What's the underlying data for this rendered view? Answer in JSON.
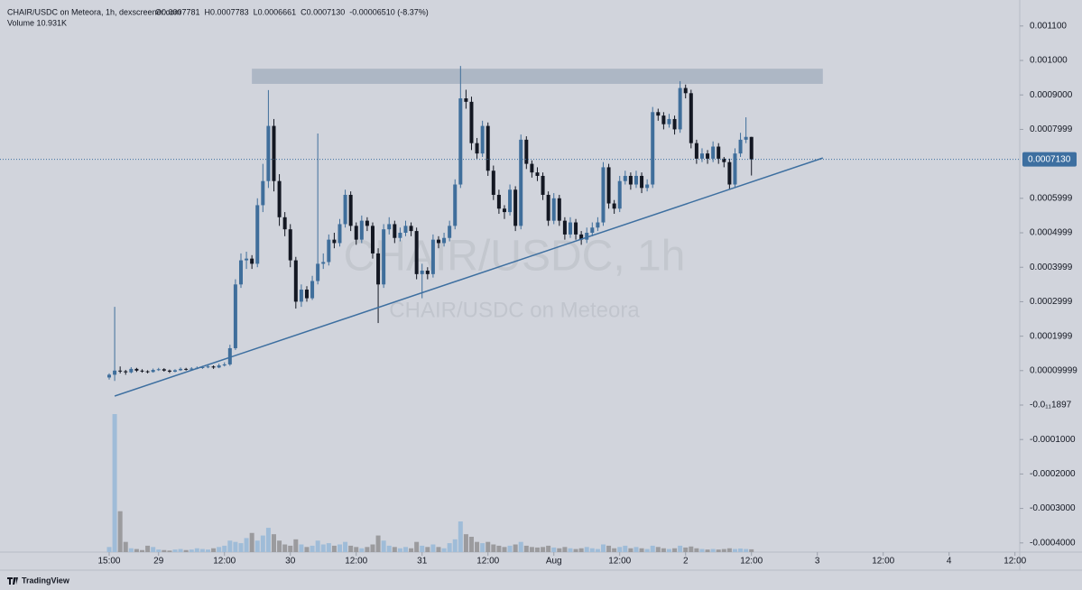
{
  "chart_data": {
    "type": "candlestick",
    "header": {
      "title": "CHAIR/USDC on Meteora, 1h, dexscreener.com",
      "ohlc": [
        "O0.0007781",
        "H0.0007783",
        "L0.0006661",
        "C0.0007130",
        "-0.00006510 (-8.37%)"
      ],
      "volume": "Volume  10.931K"
    },
    "watermark": {
      "title": "CHAIR/USDC, 1h",
      "subtitle": "CHAIR/USDC on Meteora"
    },
    "footer": "TradingView",
    "x": [
      0,
      1,
      2,
      3,
      4,
      5,
      6,
      7,
      8,
      9,
      10,
      11,
      12,
      13,
      14,
      15,
      16,
      17,
      18,
      19,
      20,
      21,
      22,
      23,
      24,
      25,
      26,
      27,
      28,
      29,
      30,
      31,
      32,
      33,
      34,
      35,
      36,
      37,
      38,
      39,
      40,
      41,
      42,
      43,
      44,
      45,
      46,
      47,
      48,
      49,
      50,
      51,
      52,
      53,
      54,
      55,
      56,
      57,
      58,
      59,
      60,
      61,
      62,
      63,
      64,
      65,
      66,
      67,
      68,
      69,
      70,
      71,
      72,
      73,
      74,
      75,
      76,
      77,
      78,
      79,
      80,
      81,
      82,
      83,
      84,
      85,
      86,
      87,
      88,
      89,
      90,
      91,
      92,
      93,
      94,
      95,
      96,
      97,
      98,
      99,
      100,
      101,
      102,
      103,
      104,
      105,
      106,
      107,
      108,
      109,
      110,
      111,
      112,
      113,
      114,
      115,
      116,
      117
    ],
    "open": [
      8e-05,
      8.8e-05,
      0.0001,
      9.8e-05,
      9.5e-05,
      0.000105,
      0.0001,
      9.8e-05,
      9.6e-05,
      0.000102,
      0.000104,
      0.0001,
      9.7e-05,
      0.000101,
      0.000105,
      0.000103,
      0.000106,
      0.000108,
      0.00011,
      0.000112,
      0.000109,
      0.000115,
      0.000118,
      0.000165,
      0.00035,
      0.00042,
      0.000425,
      0.00041,
      0.00058,
      0.00065,
      0.00081,
      0.00065,
      0.000545,
      0.00051,
      0.00042,
      0.0003,
      0.000335,
      0.00031,
      0.00036,
      0.00041,
      0.000415,
      0.00048,
      0.00047,
      0.000525,
      0.00061,
      0.00052,
      0.00048,
      0.000535,
      0.00052,
      0.00044,
      0.00035,
      0.00051,
      0.000525,
      0.000485,
      0.0005,
      0.00052,
      0.000505,
      0.00038,
      0.00039,
      0.00038,
      0.00048,
      0.00047,
      0.000485,
      0.00052,
      0.00064,
      0.00089,
      0.00088,
      0.00076,
      0.00073,
      0.00081,
      0.00068,
      0.00061,
      0.00057,
      0.00056,
      0.000625,
      0.00052,
      0.00077,
      0.0007,
      0.000675,
      0.000665,
      0.00061,
      0.000535,
      0.0006,
      0.000535,
      0.000495,
      0.00053,
      0.000495,
      0.00048,
      0.0005,
      0.000515,
      0.00053,
      0.00069,
      0.000585,
      0.00057,
      0.00065,
      0.000665,
      0.00064,
      0.000665,
      0.00063,
      0.00064,
      0.00085,
      0.00084,
      0.000815,
      0.00083,
      0.0008,
      0.00092,
      0.000905,
      0.00076,
      0.000715,
      0.00073,
      0.000715,
      0.00075,
      0.000715,
      0.000705,
      0.00064,
      0.00073,
      0.00077,
      0.0007781
    ],
    "high": [
      9.2e-05,
      0.000285,
      0.000112,
      0.000102,
      0.00011,
      0.000108,
      0.000104,
      0.000101,
      0.000106,
      0.000108,
      0.000107,
      0.000103,
      0.000104,
      0.000109,
      0.000108,
      0.00011,
      0.000112,
      0.000114,
      0.000116,
      0.000115,
      0.00012,
      0.000124,
      0.000175,
      0.000365,
      0.00044,
      0.000445,
      0.000435,
      0.0006,
      0.0007,
      0.000914,
      0.00083,
      0.00067,
      0.00056,
      0.000525,
      0.00043,
      0.00035,
      0.000345,
      0.000375,
      0.000788,
      0.00044,
      0.000495,
      0.0005,
      0.00054,
      0.000625,
      0.00062,
      0.00053,
      0.00055,
      0.000545,
      0.00053,
      0.000455,
      0.000525,
      0.000545,
      0.000535,
      0.000515,
      0.000535,
      0.00053,
      0.000515,
      0.00041,
      0.0004,
      0.000495,
      0.00049,
      0.0005,
      0.000535,
      0.000655,
      0.000984,
      0.000915,
      0.000895,
      0.000775,
      0.000825,
      0.00082,
      0.000695,
      0.000625,
      0.00058,
      0.00064,
      0.000635,
      0.000785,
      0.00078,
      0.00071,
      0.00069,
      0.000675,
      0.00062,
      0.000615,
      0.00061,
      0.000545,
      0.000545,
      0.00054,
      0.000505,
      0.000515,
      0.00053,
      0.000545,
      0.000705,
      0.0007,
      0.000595,
      0.000665,
      0.00068,
      0.000675,
      0.00068,
      0.000675,
      0.000655,
      0.000865,
      0.00086,
      0.00085,
      0.000845,
      0.00084,
      0.00094,
      0.00093,
      0.000915,
      0.00077,
      0.000745,
      0.00074,
      0.000765,
      0.00076,
      0.00072,
      0.000715,
      0.000745,
      0.00079,
      0.000835,
      0.0007783
    ],
    "low": [
      7.4e-05,
      7e-05,
      9.2e-05,
      8.8e-05,
      9.2e-05,
      9.6e-05,
      9.4e-05,
      9.2e-05,
      9.4e-05,
      9.9e-05,
      9.7e-05,
      9.3e-05,
      9.5e-05,
      9.9e-05,
      0.0001,
      0.000101,
      0.000104,
      0.000105,
      0.000107,
      0.000105,
      0.000107,
      0.000112,
      0.000114,
      0.00016,
      0.00034,
      0.000395,
      0.000395,
      0.0004,
      0.00056,
      0.00063,
      0.00062,
      0.00052,
      0.00049,
      0.0004,
      0.00028,
      0.000285,
      0.0003,
      0.000305,
      0.00035,
      0.000395,
      0.000405,
      0.000455,
      0.00046,
      0.000515,
      0.000505,
      0.000465,
      0.00047,
      0.000505,
      0.000425,
      0.000238,
      0.00034,
      0.000495,
      0.00047,
      0.000475,
      0.00049,
      0.00049,
      0.000365,
      0.00031,
      0.000365,
      0.00037,
      0.000455,
      0.00046,
      0.000475,
      0.00051,
      0.00063,
      0.00086,
      0.00074,
      0.000715,
      0.00072,
      0.000665,
      0.000595,
      0.000555,
      0.00054,
      0.00055,
      0.000505,
      0.00051,
      0.000685,
      0.00066,
      0.00065,
      0.000595,
      0.00052,
      0.000525,
      0.00052,
      0.00048,
      0.000485,
      0.00048,
      0.000465,
      0.00047,
      0.00049,
      0.000505,
      0.00052,
      0.00057,
      0.000555,
      0.00056,
      0.00064,
      0.000625,
      0.00063,
      0.000615,
      0.00062,
      0.00063,
      0.000825,
      0.0008,
      0.000805,
      0.000785,
      0.00079,
      0.00089,
      0.000745,
      0.0007,
      0.000705,
      0.0007,
      0.000705,
      0.0007,
      0.00069,
      0.000625,
      0.00063,
      0.00072,
      0.00076,
      0.0006661
    ],
    "close": [
      8.8e-05,
      0.0001,
      9.8e-05,
      9.5e-05,
      0.000105,
      0.0001,
      9.8e-05,
      9.6e-05,
      0.000102,
      0.000104,
      0.0001,
      9.7e-05,
      0.000101,
      0.000105,
      0.000103,
      0.000106,
      0.000108,
      0.00011,
      0.000112,
      0.000109,
      0.000115,
      0.000118,
      0.000165,
      0.00035,
      0.00042,
      0.000425,
      0.00041,
      0.00058,
      0.00065,
      0.00081,
      0.00065,
      0.000545,
      0.00051,
      0.00042,
      0.0003,
      0.000335,
      0.00031,
      0.00036,
      0.00041,
      0.000415,
      0.00048,
      0.00047,
      0.000525,
      0.00061,
      0.00052,
      0.00048,
      0.000535,
      0.00052,
      0.00044,
      0.00035,
      0.00051,
      0.000525,
      0.000485,
      0.0005,
      0.00052,
      0.000505,
      0.00038,
      0.00039,
      0.00038,
      0.00048,
      0.00047,
      0.000485,
      0.00052,
      0.00064,
      0.00089,
      0.00088,
      0.00076,
      0.00073,
      0.00081,
      0.00068,
      0.00061,
      0.00057,
      0.00056,
      0.000625,
      0.00052,
      0.00077,
      0.0007,
      0.000675,
      0.000665,
      0.00061,
      0.000535,
      0.0006,
      0.000535,
      0.000495,
      0.00053,
      0.000495,
      0.00048,
      0.0005,
      0.000515,
      0.00053,
      0.00069,
      0.000585,
      0.00057,
      0.00065,
      0.000665,
      0.00064,
      0.000665,
      0.00063,
      0.00064,
      0.00085,
      0.00084,
      0.000815,
      0.00083,
      0.0008,
      0.00092,
      0.000905,
      0.00076,
      0.000715,
      0.00073,
      0.000715,
      0.00075,
      0.000715,
      0.000705,
      0.00064,
      0.00073,
      0.00077,
      0.0007781,
      0.000713
    ],
    "volume": [
      20000,
      540000,
      160000,
      40000,
      15000,
      12000,
      8000,
      25000,
      20000,
      10000,
      8000,
      6000,
      10000,
      12000,
      8000,
      10000,
      15000,
      12000,
      10000,
      15000,
      20000,
      25000,
      45000,
      40000,
      35000,
      55000,
      75000,
      45000,
      65000,
      95000,
      70000,
      45000,
      30000,
      25000,
      50000,
      30000,
      20000,
      25000,
      45000,
      30000,
      35000,
      25000,
      30000,
      40000,
      25000,
      20000,
      15000,
      20000,
      30000,
      65000,
      45000,
      25000,
      20000,
      15000,
      20000,
      15000,
      40000,
      25000,
      20000,
      30000,
      20000,
      15000,
      35000,
      50000,
      120000,
      70000,
      60000,
      40000,
      35000,
      40000,
      30000,
      25000,
      20000,
      25000,
      30000,
      40000,
      25000,
      20000,
      18000,
      20000,
      25000,
      18000,
      15000,
      20000,
      15000,
      12000,
      15000,
      20000,
      15000,
      12000,
      30000,
      25000,
      15000,
      20000,
      25000,
      15000,
      20000,
      15000,
      12000,
      25000,
      20000,
      15000,
      12000,
      15000,
      25000,
      18000,
      22000,
      15000,
      12000,
      10000,
      12000,
      10000,
      12000,
      15000,
      12000,
      14000,
      12000,
      10931
    ],
    "colors": {
      "up": "#3f6e9b",
      "down": "#131722",
      "volume_up": "#9fbcd8",
      "volume_down": "#9b9b9e",
      "zone": "#a7b2c1",
      "trendline": "#3d6fa0",
      "last_price": "#3d6fa0"
    },
    "xlim": [
      -19.89,
      165.87
    ],
    "xticks": [
      {
        "value": 0,
        "label": "15:00"
      },
      {
        "value": 9,
        "label": "29"
      },
      {
        "value": 21,
        "label": "12:00"
      },
      {
        "value": 33,
        "label": "30"
      },
      {
        "value": 45,
        "label": "12:00"
      },
      {
        "value": 57,
        "label": "31"
      },
      {
        "value": 69,
        "label": "12:00"
      },
      {
        "value": 81,
        "label": "Aug"
      },
      {
        "value": 93,
        "label": "12:00"
      },
      {
        "value": 105,
        "label": "2"
      },
      {
        "value": 117,
        "label": "12:00"
      },
      {
        "value": 129,
        "label": "3"
      },
      {
        "value": 141,
        "label": "12:00"
      },
      {
        "value": 153,
        "label": "4"
      },
      {
        "value": 165,
        "label": "12:00"
      }
    ],
    "ylim": [
      -0.0004267,
      0.0011754
    ],
    "yticks": [
      {
        "value": 0.0011,
        "label": "0.001100"
      },
      {
        "value": 0.001,
        "label": "0.001000"
      },
      {
        "value": 0.0009,
        "label": "0.0009000"
      },
      {
        "value": 0.0007999,
        "label": "0.0007999"
      },
      {
        "value": 0.0005999,
        "label": "0.0005999"
      },
      {
        "value": 0.0004999,
        "label": "0.0004999"
      },
      {
        "value": 0.0003999,
        "label": "0.0003999"
      },
      {
        "value": 0.0002999,
        "label": "0.0002999"
      },
      {
        "value": 0.0001999,
        "label": "0.0001999"
      },
      {
        "value": 9.999e-05,
        "label": "0.00009999"
      },
      {
        "value": -1.897e-12,
        "label": "-0.0₁₁1897"
      },
      {
        "value": -0.0001,
        "label": "-0.0001000"
      },
      {
        "value": -0.0002,
        "label": "-0.0002000"
      },
      {
        "value": -0.0003,
        "label": "-0.0003000"
      },
      {
        "value": -0.0004,
        "label": "-0.0004000"
      }
    ],
    "volume_ylim": [
      0,
      600000
    ],
    "last_price": {
      "value": 0.000713,
      "label": "0.0007130"
    },
    "zone": {
      "x": [
        26,
        130
      ],
      "y": [
        0.000932,
        0.000976
      ]
    },
    "trendline": {
      "x": [
        1,
        130
      ],
      "y": [
        2.6e-05,
        0.000717
      ]
    }
  }
}
